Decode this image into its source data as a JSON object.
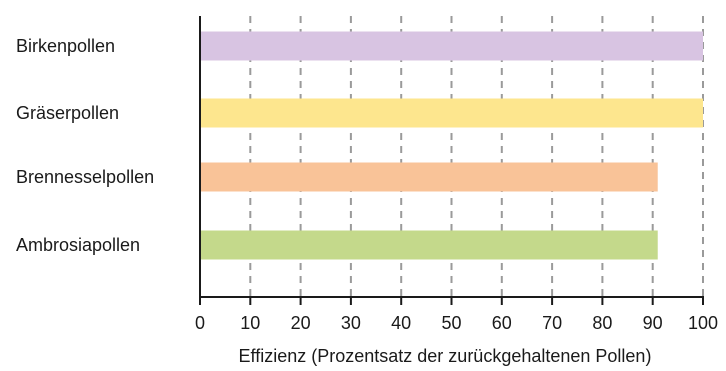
{
  "chart_data": {
    "type": "bar",
    "orientation": "horizontal",
    "categories": [
      "Birkenpollen",
      "Gräserpollen",
      "Brennesselpollen",
      "Ambrosiapollen"
    ],
    "values": [
      100,
      100,
      91,
      91
    ],
    "colors": [
      "#d8c4e2",
      "#fde68e",
      "#f9c398",
      "#c4d98b"
    ],
    "xlabel": "Effizienz (Prozentsatz der zurückgehaltenen Pollen)",
    "ylabel": "",
    "xlim": [
      0,
      100
    ],
    "xticks": [
      "0",
      "10",
      "20",
      "30",
      "40",
      "50",
      "60",
      "70",
      "80",
      "90",
      "100"
    ],
    "grid": "vertical dashed",
    "legend": "none"
  }
}
